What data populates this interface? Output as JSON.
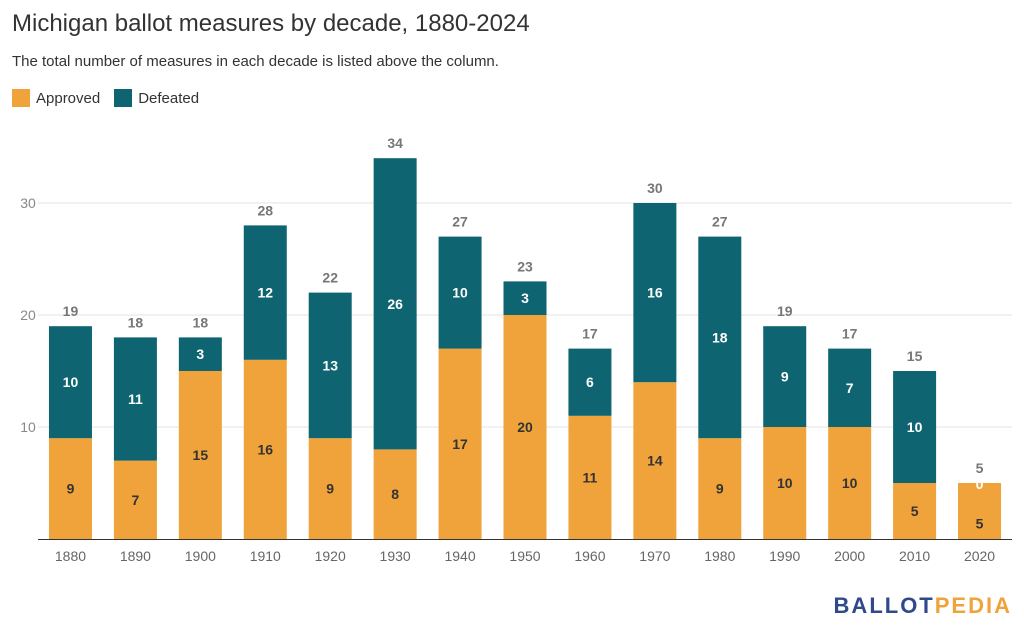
{
  "title": "Michigan ballot measures by decade, 1880-2024",
  "subtitle": "The total number of measures in each decade is listed above the column.",
  "legend": [
    {
      "label": "Approved",
      "color": "#f0a33a"
    },
    {
      "label": "Defeated",
      "color": "#0e6470"
    }
  ],
  "brand": {
    "part1": "BALLOT",
    "part2": "PEDIA"
  },
  "chart_data": {
    "type": "bar",
    "stacked": true,
    "categories": [
      "1880",
      "1890",
      "1900",
      "1910",
      "1920",
      "1930",
      "1940",
      "1950",
      "1960",
      "1970",
      "1980",
      "1990",
      "2000",
      "2010",
      "2020"
    ],
    "series": [
      {
        "name": "Approved",
        "color": "#f0a33a",
        "values": [
          9,
          7,
          15,
          16,
          9,
          8,
          17,
          20,
          11,
          14,
          9,
          10,
          10,
          5,
          5
        ]
      },
      {
        "name": "Defeated",
        "color": "#0e6470",
        "values": [
          10,
          11,
          3,
          12,
          13,
          26,
          10,
          3,
          6,
          16,
          18,
          9,
          7,
          10,
          0
        ]
      }
    ],
    "totals": [
      19,
      18,
      18,
      28,
      22,
      34,
      27,
      23,
      17,
      30,
      27,
      19,
      17,
      15,
      5
    ],
    "yticks": [
      10,
      20,
      30
    ],
    "ylim": [
      0,
      34
    ],
    "grid": true,
    "legend_position": "top-left"
  }
}
